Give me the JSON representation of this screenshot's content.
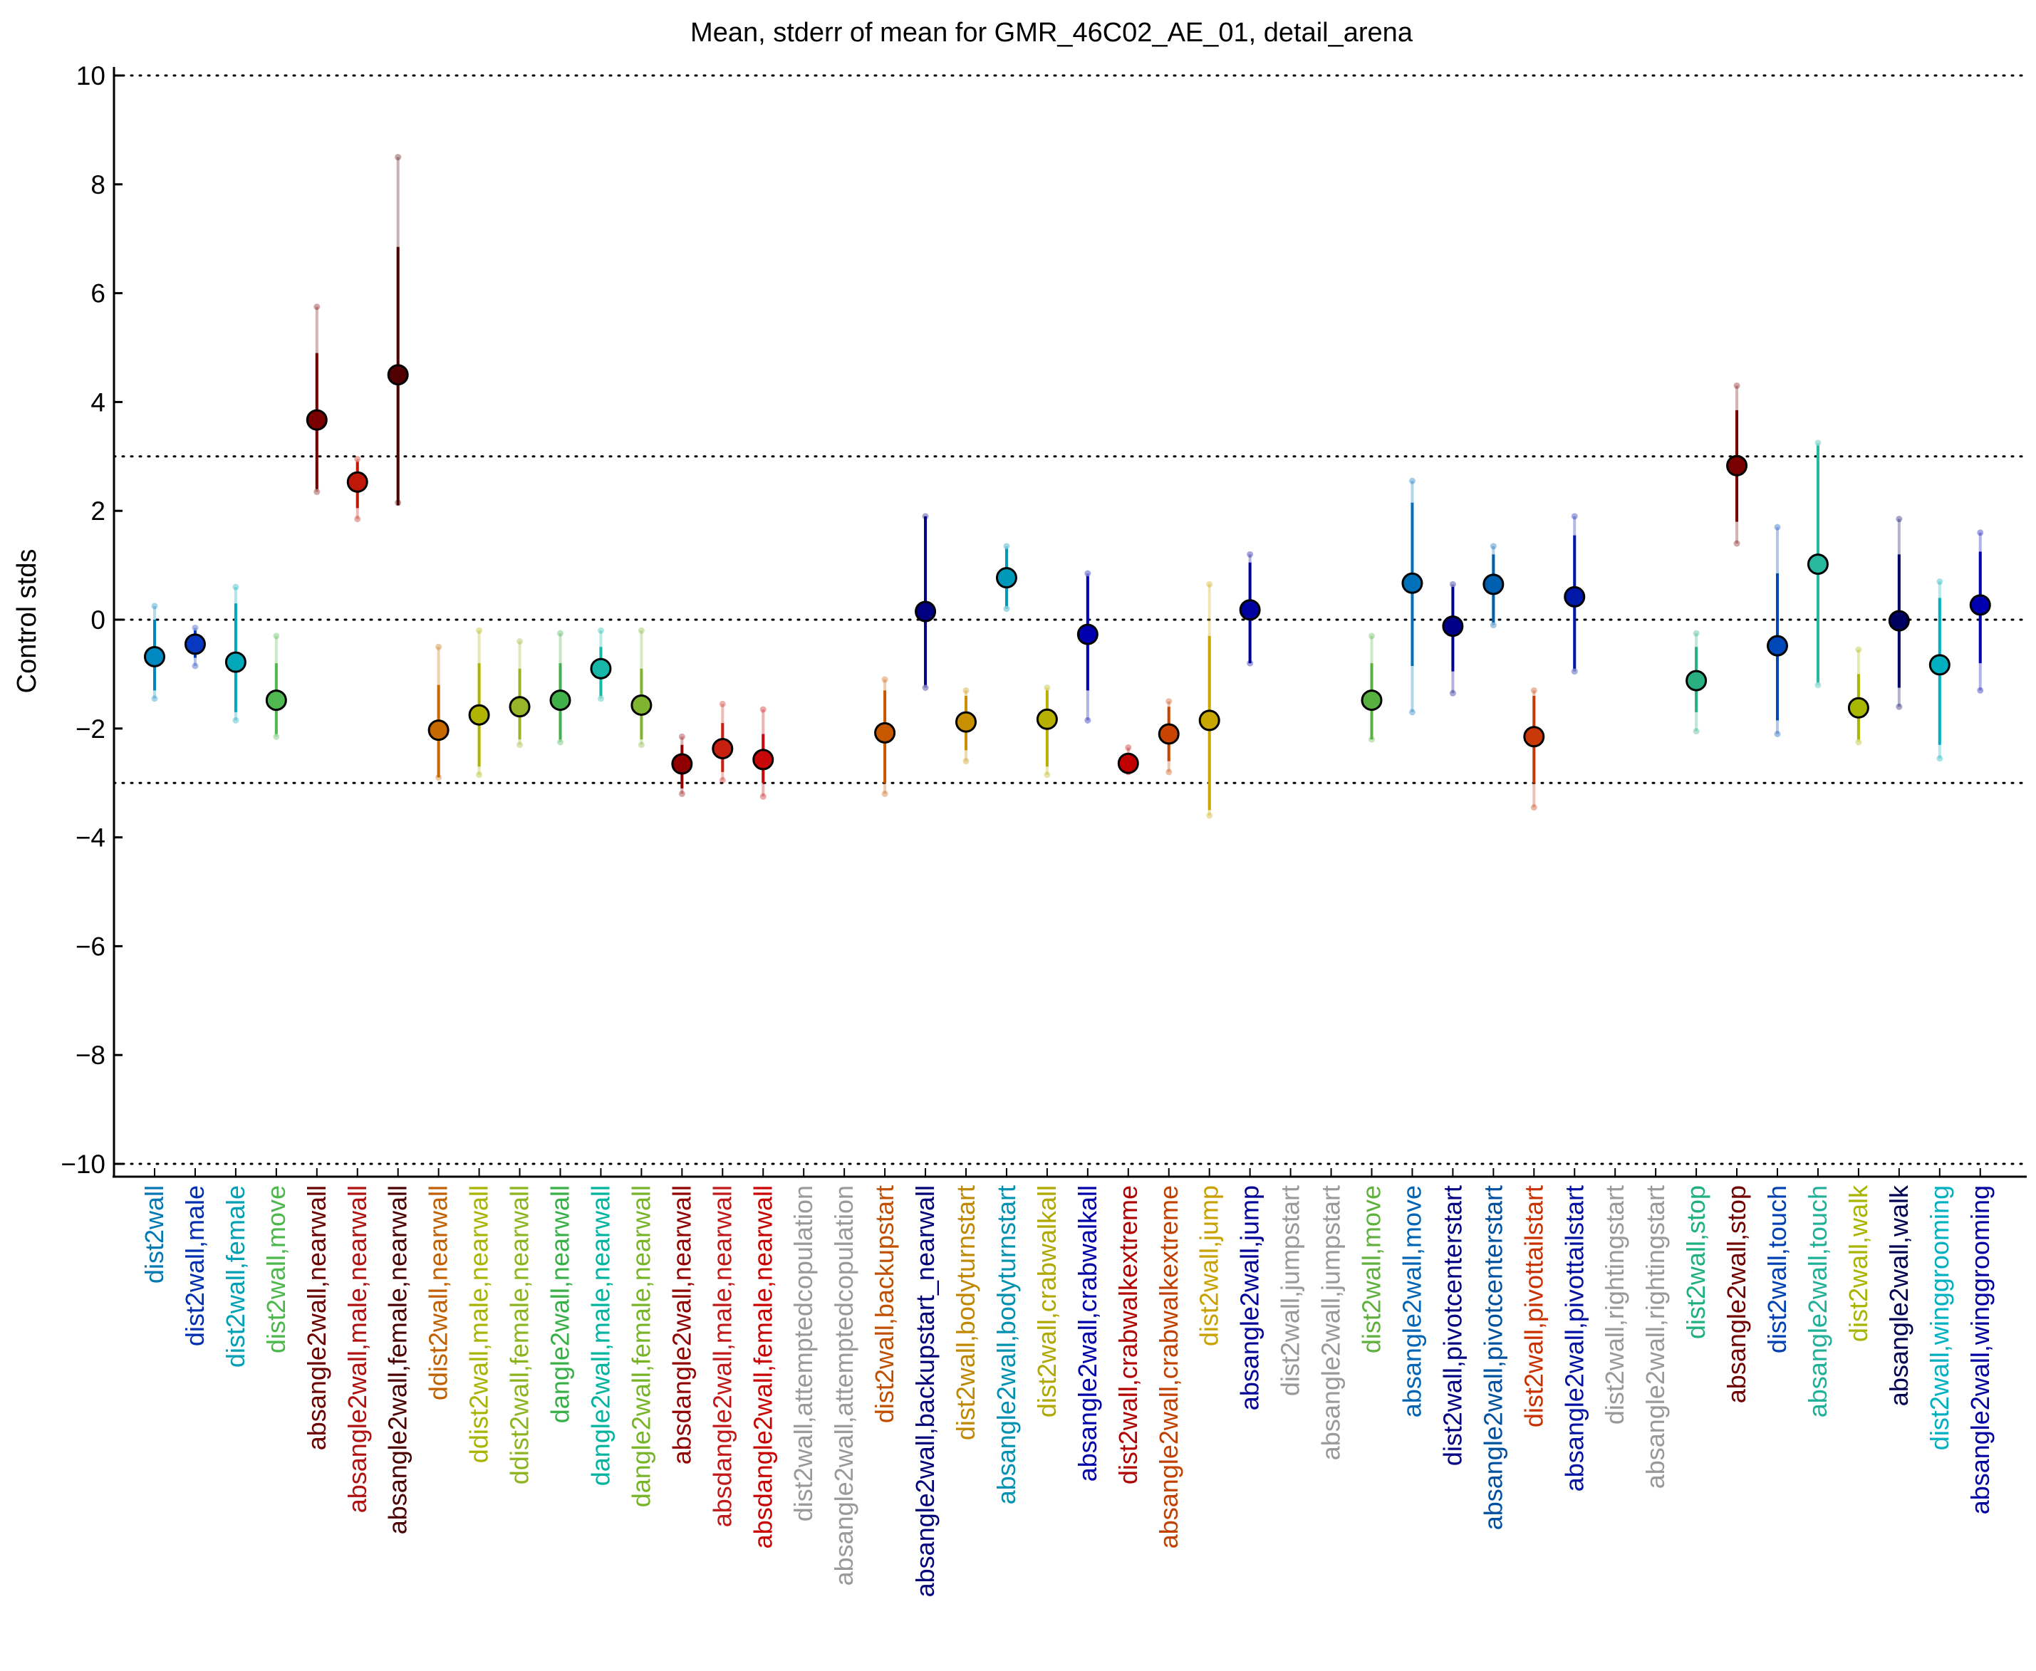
{
  "chart_data": {
    "type": "scatter",
    "title": "Mean, stderr of mean for GMR_46C02_AE_01, detail_arena",
    "xlabel": "",
    "ylabel": "Control stds",
    "ylim": [
      -10,
      10
    ],
    "yticks": [
      10,
      8,
      6,
      4,
      2,
      0,
      -2,
      -4,
      -6,
      -8,
      -10
    ],
    "ytick_labels": [
      "10",
      "8",
      "6",
      "4",
      "2",
      "0",
      "−2",
      "−4",
      "−6",
      "−8",
      "−10"
    ],
    "reference_lines": [
      10,
      3,
      0,
      -3,
      -10
    ],
    "grid": false,
    "legend": "none",
    "categories": [
      "dist2wall",
      "dist2wall,male",
      "dist2wall,female",
      "dist2wall,move",
      "absangle2wall,nearwall",
      "absangle2wall,male,nearwall",
      "absangle2wall,female,nearwall",
      "ddist2wall,nearwall",
      "ddist2wall,male,nearwall",
      "ddist2wall,female,nearwall",
      "dangle2wall,nearwall",
      "dangle2wall,male,nearwall",
      "dangle2wall,female,nearwall",
      "absdangle2wall,nearwall",
      "absdangle2wall,male,nearwall",
      "absdangle2wall,female,nearwall",
      "dist2wall,attemptedcopulation",
      "absangle2wall,attemptedcopulation",
      "dist2wall,backupstart",
      "absangle2wall,backupstart_nearwall",
      "dist2wall,bodyturnstart",
      "absangle2wall,bodyturnstart",
      "dist2wall,crabwalkall",
      "absangle2wall,crabwalkall",
      "dist2wall,crabwalkextreme",
      "absangle2wall,crabwalkextreme",
      "dist2wall,jump",
      "absangle2wall,jump",
      "dist2wall,jumpstart",
      "absangle2wall,jumpstart",
      "dist2wall,move",
      "absangle2wall,move",
      "dist2wall,pivotcenterstart",
      "absangle2wall,pivotcenterstart",
      "dist2wall,pivottailstart",
      "absangle2wall,pivottailstart",
      "dist2wall,rightingstart",
      "absangle2wall,rightingstart",
      "dist2wall,stop",
      "absangle2wall,stop",
      "dist2wall,touch",
      "absangle2wall,touch",
      "dist2wall,walk",
      "absangle2wall,walk",
      "dist2wall,winggrooming",
      "absangle2wall,winggrooming"
    ],
    "label_colors": [
      "#0078b4",
      "#0030b0",
      "#00a0b4",
      "#4cb84c",
      "#6a0000",
      "#b01010",
      "#4a0000",
      "#c06000",
      "#a8b400",
      "#8cb420",
      "#38b048",
      "#00b4a0",
      "#78b428",
      "#900000",
      "#c01818",
      "#c80000",
      "#999999",
      "#999999",
      "#c05000",
      "#000078",
      "#c08800",
      "#0090b0",
      "#b0a800",
      "#0000a8",
      "#b00000",
      "#c04000",
      "#c8a000",
      "#000096",
      "#999999",
      "#999999",
      "#60b040",
      "#0064b4",
      "#000080",
      "#0050a0",
      "#c83000",
      "#0010a0",
      "#999999",
      "#999999",
      "#20b080",
      "#700000",
      "#0040b0",
      "#20b098",
      "#a8b400",
      "#000050",
      "#00b0c0",
      "#0000a0"
    ],
    "series": [
      {
        "values": [
          -0.68,
          -0.45,
          -0.78,
          -1.48,
          3.67,
          2.53,
          4.5,
          -2.03,
          -1.75,
          -1.6,
          -1.48,
          -0.9,
          -1.57,
          -2.65,
          -2.37,
          -2.57,
          null,
          null,
          -2.08,
          0.15,
          -1.88,
          0.77,
          -1.83,
          -0.27,
          -2.64,
          -2.1,
          -1.85,
          0.18,
          null,
          null,
          -1.48,
          0.67,
          -0.12,
          0.65,
          -2.15,
          0.42,
          null,
          null,
          -1.12,
          2.83,
          -0.48,
          1.02,
          -1.62,
          -0.02,
          -0.83,
          0.27
        ],
        "stderr_low": [
          -1.3,
          -0.7,
          -1.7,
          -2.1,
          2.4,
          2.05,
          2.1,
          -2.9,
          -2.7,
          -2.2,
          -2.2,
          -1.4,
          -2.2,
          -3.1,
          -2.8,
          -3.0,
          null,
          null,
          -3.0,
          -1.2,
          -2.4,
          0.25,
          -2.7,
          -1.3,
          -2.8,
          -2.6,
          -3.5,
          -0.8,
          null,
          null,
          -2.2,
          -0.85,
          -0.95,
          -0.05,
          -3.0,
          -0.9,
          null,
          null,
          -1.7,
          1.8,
          -1.85,
          -1.15,
          -2.2,
          -1.25,
          -2.3,
          -0.8
        ],
        "stderr_high": [
          0.0,
          -0.2,
          0.3,
          -0.8,
          4.9,
          2.9,
          6.85,
          -1.2,
          -0.8,
          -0.9,
          -0.8,
          -0.5,
          -0.9,
          -2.3,
          -1.9,
          -2.1,
          null,
          null,
          -1.3,
          1.9,
          -1.4,
          1.3,
          -1.3,
          0.8,
          -2.5,
          -1.6,
          -0.3,
          1.05,
          null,
          null,
          -0.8,
          2.15,
          0.6,
          1.2,
          -1.4,
          1.55,
          null,
          null,
          -0.5,
          3.85,
          0.85,
          3.2,
          -1.0,
          1.2,
          0.4,
          1.25
        ],
        "min": [
          -1.45,
          -0.85,
          -1.85,
          -2.15,
          2.35,
          1.85,
          2.15,
          -2.9,
          -2.85,
          -2.3,
          -2.25,
          -1.45,
          -2.3,
          -3.2,
          -2.95,
          -3.25,
          null,
          null,
          -3.2,
          -1.25,
          -2.6,
          0.2,
          -2.85,
          -1.85,
          -2.8,
          -2.8,
          -3.6,
          -0.8,
          null,
          null,
          -2.2,
          -1.7,
          -1.35,
          -0.1,
          -3.45,
          -0.95,
          null,
          null,
          -2.05,
          1.4,
          -2.1,
          -1.2,
          -2.25,
          -1.6,
          -2.55,
          -1.3
        ],
        "max": [
          0.25,
          -0.15,
          0.6,
          -0.3,
          5.75,
          2.95,
          8.5,
          -0.5,
          -0.2,
          -0.4,
          -0.25,
          -0.2,
          -0.2,
          -2.15,
          -1.55,
          -1.65,
          null,
          null,
          -1.1,
          1.9,
          -1.3,
          1.35,
          -1.25,
          0.85,
          -2.35,
          -1.5,
          0.65,
          1.2,
          null,
          null,
          -0.3,
          2.55,
          0.65,
          1.35,
          -1.3,
          1.9,
          null,
          null,
          -0.25,
          4.3,
          1.7,
          3.25,
          -0.55,
          1.85,
          0.7,
          1.6
        ],
        "marker_colors": [
          "#0088c0",
          "#0838c0",
          "#00a8b8",
          "#50b850",
          "#7a0000",
          "#c01808",
          "#500000",
          "#c86800",
          "#b0b400",
          "#98b428",
          "#40b048",
          "#18b8a8",
          "#80b430",
          "#900000",
          "#c82010",
          "#c80808",
          null,
          null,
          "#c85800",
          "#000080",
          "#c89000",
          "#0098b8",
          "#b8b000",
          "#0000b0",
          "#c00000",
          "#c84400",
          "#c8a800",
          "#0000a0",
          null,
          null,
          "#58b040",
          "#0070b8",
          "#000088",
          "#0060b0",
          "#c83808",
          "#0018a8",
          null,
          null,
          "#28b080",
          "#780000",
          "#0048b8",
          "#28b8a0",
          "#a8b800",
          "#000060",
          "#00b0c0",
          "#0000b0"
        ]
      }
    ]
  }
}
